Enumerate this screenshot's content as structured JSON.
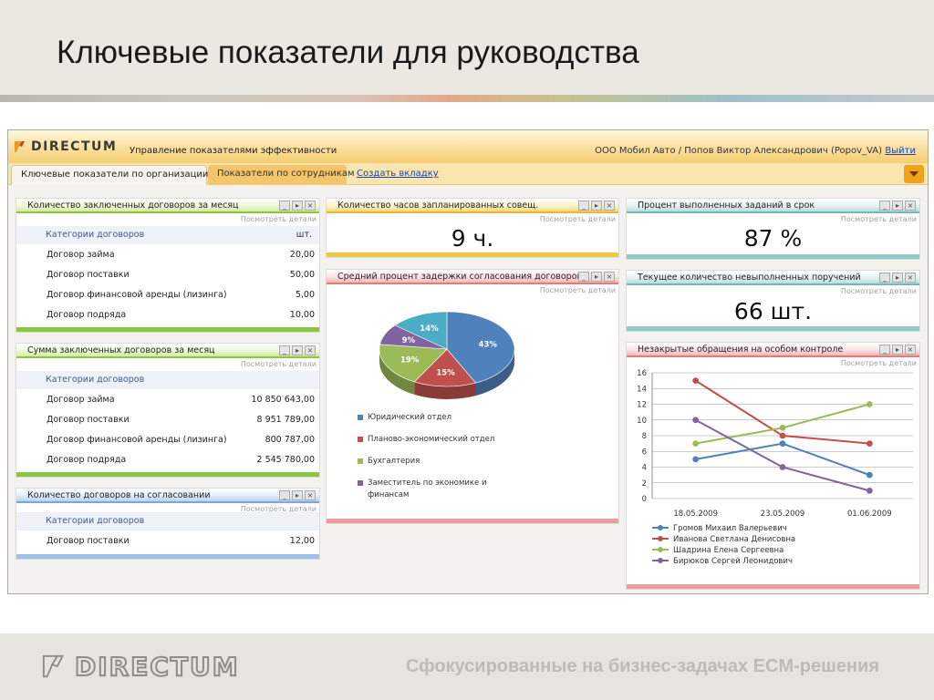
{
  "slide": {
    "title": "Ключевые показатели для руководства",
    "footer_logo": "DIRECTUM",
    "footer_tagline": "Сфокусированные на бизнес-задачах ECM-решения"
  },
  "app": {
    "logo": "DIRECTUM",
    "subtitle": "Управление показателями эффективности",
    "user_info": "ООО Мобил Авто / Попов Виктор Александрович (Popov_VA)",
    "logout": "Выйти",
    "tabs": [
      {
        "label": "Ключевые показатели по организации",
        "active": true
      },
      {
        "label": "Показатели по сотрудникам",
        "active": false
      }
    ],
    "create_tab": "Создать вкладку"
  },
  "widgets": {
    "details_label": "Посмотреть детали",
    "contracts_count": {
      "title": "Количество заключенных договоров за месяц",
      "col1": "Категории договоров",
      "col2": "шт.",
      "rows": [
        {
          "name": "Договор займа",
          "value": "20,00"
        },
        {
          "name": "Договор поставки",
          "value": "50,00"
        },
        {
          "name": "Договор финансовой аренды (лизинга)",
          "value": "5,00"
        },
        {
          "name": "Договор подряда",
          "value": "10,00"
        }
      ]
    },
    "contracts_sum": {
      "title": "Сумма заключенных договоров за месяц",
      "col1": "Категории договоров",
      "rows": [
        {
          "name": "Договор займа",
          "value": "10 850 643,00"
        },
        {
          "name": "Договор поставки",
          "value": "8 951 789,00"
        },
        {
          "name": "Договор финансовой аренды (лизинга)",
          "value": "800 787,00"
        },
        {
          "name": "Договор подряда",
          "value": "2 545 780,00"
        }
      ]
    },
    "contracts_approval": {
      "title": "Количество договоров на согласовании",
      "col1": "Категории договоров",
      "rows": [
        {
          "name": "Договор поставки",
          "value": "12,00"
        }
      ]
    },
    "meeting_hours": {
      "title": "Количество часов запланированных совещ.",
      "value": "9 ч."
    },
    "tasks_on_time": {
      "title": "Процент выполненных заданий в срок",
      "value": "87 %"
    },
    "overdue_tasks": {
      "title": "Текущее количество невыполненных поручений",
      "value": "66 шт."
    },
    "approval_delay": {
      "title": "Средний процент задержки согласования договоров"
    },
    "open_requests": {
      "title": "Незакрытые обращения на особом контроле"
    }
  },
  "chart_data": [
    {
      "type": "pie",
      "slices": [
        {
          "name": "Юридический отдел",
          "value": 43,
          "label": "43%",
          "color": "#4f81bd"
        },
        {
          "name": "Планово-экономический отдел",
          "value": 15,
          "label": "15%",
          "color": "#c0504d"
        },
        {
          "name": "Бухгалтерия",
          "value": 19,
          "label": "19%",
          "color": "#9bbb59"
        },
        {
          "name": "Заместитель по экономике и финансам",
          "value": 9,
          "label": "9%",
          "color": "#8064a2"
        },
        {
          "name": "",
          "value": 14,
          "label": "14%",
          "color": "#4bacc6"
        }
      ]
    },
    {
      "type": "line",
      "categories": [
        "18.05.2009",
        "23.05.2009",
        "01.06.2009"
      ],
      "ylim": [
        0,
        16
      ],
      "yticks": [
        "0",
        "2",
        "4",
        "6",
        "8",
        "10",
        "12",
        "14",
        "16"
      ],
      "grid": true,
      "legend_position": "bottom",
      "series": [
        {
          "name": "Громов Михаил Валерьевич",
          "color": "#4f81bd",
          "values": [
            5,
            7,
            3
          ]
        },
        {
          "name": "Иванова Светлана Денисовна",
          "color": "#c0504d",
          "values": [
            15,
            8,
            7
          ]
        },
        {
          "name": "Шадрина Елена Сергеевна",
          "color": "#9bbb59",
          "values": [
            7,
            9,
            12
          ]
        },
        {
          "name": "Бирюков Сергей Леонидович",
          "color": "#8064a2",
          "values": [
            10,
            4,
            1
          ]
        }
      ]
    }
  ]
}
